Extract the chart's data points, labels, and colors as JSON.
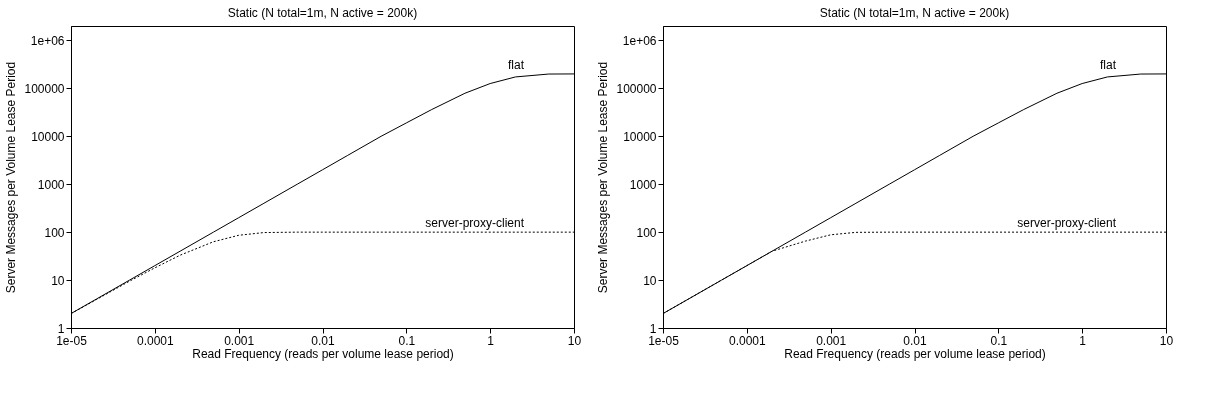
{
  "chart_data": [
    {
      "type": "line",
      "title": "Static (N total=1m, N active = 200k)",
      "xlabel": "Read Frequency (reads per volume lease period)",
      "ylabel": "Server Messages per Volume Lease Period",
      "log": "xy",
      "grid": false,
      "xlim": [
        1e-05,
        10
      ],
      "ylim": [
        1,
        2000000
      ],
      "xticks": [
        {
          "value": 1e-05,
          "label": "1e-05"
        },
        0.0001,
        0.001,
        0.01,
        0.1,
        1,
        10
      ],
      "yticks": [
        1,
        10,
        100,
        1000,
        10000,
        100000,
        {
          "value": 1000000,
          "label": "1e+06"
        }
      ],
      "x": [
        1e-05,
        2e-05,
        5e-05,
        0.0001,
        0.0002,
        0.0005,
        0.001,
        0.002,
        0.005,
        0.01,
        0.02,
        0.05,
        0.1,
        0.2,
        0.5,
        1,
        2,
        5,
        10
      ],
      "series": [
        {
          "name": "flat",
          "color": "#000000",
          "line_style": "solid",
          "values": [
            2,
            4,
            10,
            20,
            40,
            100,
            200,
            400,
            1000,
            2000,
            4000,
            10000,
            19000,
            36000,
            79000,
            126000,
            173000,
            199000,
            200000
          ]
        },
        {
          "name": "server-proxy-client",
          "color": "#000000",
          "line_style": "dotted",
          "values": [
            2,
            3.9,
            9.5,
            18,
            33,
            63,
            86,
            98,
            100,
            100,
            100,
            100,
            100,
            100,
            100,
            100,
            100,
            100,
            100
          ]
        }
      ]
    },
    {
      "type": "line",
      "title": "Static (N total=1m, N active = 200k)",
      "xlabel": "Read Frequency (reads per volume lease period)",
      "ylabel": "Server Messages per Volume Lease Period",
      "log": "xy",
      "grid": false,
      "xlim": [
        1e-05,
        10
      ],
      "ylim": [
        1,
        2000000
      ],
      "xticks": [
        {
          "value": 1e-05,
          "label": "1e-05"
        },
        0.0001,
        0.001,
        0.01,
        0.1,
        1,
        10
      ],
      "yticks": [
        1,
        10,
        100,
        1000,
        10000,
        100000,
        {
          "value": 1000000,
          "label": "1e+06"
        }
      ],
      "x": [
        1e-05,
        2e-05,
        5e-05,
        0.0001,
        0.0002,
        0.0005,
        0.001,
        0.002,
        0.005,
        0.01,
        0.02,
        0.05,
        0.1,
        0.2,
        0.5,
        1,
        2,
        5,
        10
      ],
      "series": [
        {
          "name": "flat",
          "color": "#000000",
          "line_style": "solid",
          "values": [
            2,
            4,
            10,
            20,
            40,
            100,
            200,
            400,
            1000,
            2000,
            4000,
            10000,
            19000,
            36000,
            79000,
            126000,
            173000,
            199000,
            200000
          ]
        },
        {
          "name": "server-proxy-client",
          "color": "#000000",
          "line_style": "dotted",
          "values": [
            2,
            4,
            10,
            20,
            40,
            65,
            88,
            99,
            100,
            100,
            100,
            100,
            100,
            100,
            100,
            100,
            100,
            100,
            100
          ]
        }
      ]
    }
  ]
}
